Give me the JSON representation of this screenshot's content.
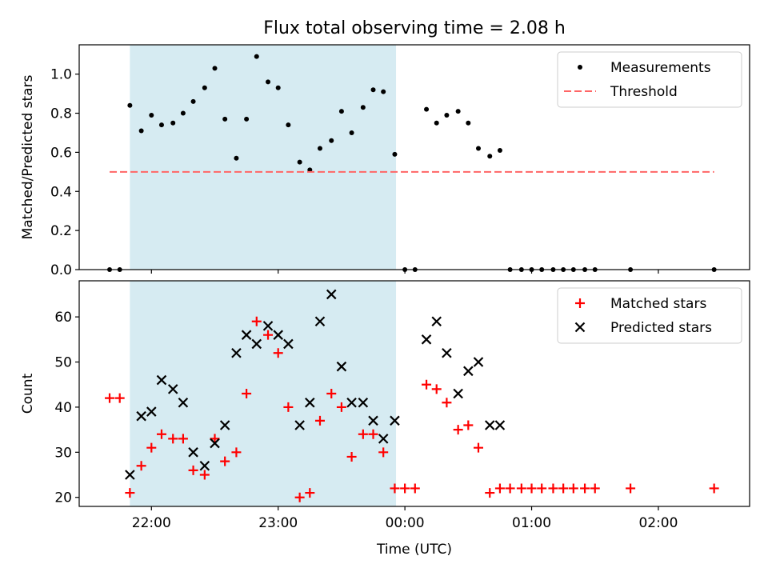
{
  "title": "Flux total observing time = 2.08 h",
  "chart_data": [
    {
      "type": "scatter",
      "ylabel": "Matched/Predicted stars",
      "ylim": [
        0,
        1.15
      ],
      "yticks": [
        "0.0",
        "0.2",
        "0.4",
        "0.6",
        "0.8",
        "1.0"
      ],
      "xlim_hours": [
        21.43,
        26.72
      ],
      "highlight_span_hours": [
        21.83,
        23.93
      ],
      "legend_position": "top-right",
      "series": [
        {
          "name": "Measurements",
          "color": "#000000",
          "marker": "dot",
          "x": [
            21.67,
            21.75,
            21.83,
            21.92,
            22.0,
            22.08,
            22.17,
            22.25,
            22.33,
            22.42,
            22.5,
            22.58,
            22.67,
            22.75,
            22.83,
            22.92,
            23.0,
            23.08,
            23.17,
            23.25,
            23.33,
            23.42,
            23.5,
            23.58,
            23.67,
            23.75,
            23.83,
            23.92,
            24.0,
            24.08,
            24.17,
            24.25,
            24.33,
            24.42,
            24.5,
            24.58,
            24.67,
            24.75,
            24.83,
            24.92,
            25.0,
            25.08,
            25.17,
            25.25,
            25.33,
            25.42,
            25.5,
            25.78,
            26.44
          ],
          "y": [
            0,
            0,
            0.84,
            0.71,
            0.79,
            0.74,
            0.75,
            0.8,
            0.86,
            0.93,
            1.03,
            0.77,
            0.57,
            0.77,
            1.09,
            0.96,
            0.93,
            0.74,
            0.55,
            0.51,
            0.62,
            0.66,
            0.81,
            0.7,
            0.83,
            0.92,
            0.91,
            0.59,
            0,
            0,
            0.82,
            0.75,
            0.79,
            0.81,
            0.75,
            0.62,
            0.58,
            0.61,
            0,
            0,
            0,
            0,
            0,
            0,
            0,
            0,
            0,
            0,
            0
          ]
        },
        {
          "name": "Threshold",
          "color": "#ff6666",
          "style": "dashed",
          "x": [
            21.67,
            26.44
          ],
          "y": [
            0.5,
            0.5
          ]
        }
      ]
    },
    {
      "type": "scatter",
      "ylabel": "Count",
      "xlabel": "Time (UTC)",
      "ylim": [
        18,
        68
      ],
      "yticks": [
        "20",
        "30",
        "40",
        "50",
        "60"
      ],
      "xticks": [
        "22:00",
        "23:00",
        "00:00",
        "01:00",
        "02:00"
      ],
      "xlim_hours": [
        21.43,
        26.72
      ],
      "highlight_span_hours": [
        21.83,
        23.93
      ],
      "legend_position": "top-right",
      "series": [
        {
          "name": "Matched stars",
          "color": "#ff0000",
          "marker": "plus",
          "x": [
            21.67,
            21.75,
            21.83,
            21.92,
            22.0,
            22.08,
            22.17,
            22.25,
            22.33,
            22.42,
            22.5,
            22.58,
            22.67,
            22.75,
            22.83,
            22.92,
            23.0,
            23.08,
            23.17,
            23.25,
            23.33,
            23.42,
            23.5,
            23.58,
            23.67,
            23.75,
            23.83,
            23.92,
            24.0,
            24.08,
            24.17,
            24.25,
            24.33,
            24.42,
            24.5,
            24.58,
            24.67,
            24.75,
            24.83,
            24.92,
            25.0,
            25.08,
            25.17,
            25.25,
            25.33,
            25.42,
            25.5,
            25.78,
            26.44
          ],
          "y": [
            42,
            42,
            21,
            27,
            31,
            34,
            33,
            33,
            26,
            25,
            33,
            28,
            30,
            43,
            59,
            56,
            52,
            40,
            20,
            21,
            37,
            43,
            40,
            29,
            34,
            34,
            30,
            22,
            22,
            22,
            45,
            44,
            41,
            35,
            36,
            31,
            21,
            22,
            22,
            22,
            22,
            22,
            22,
            22,
            22,
            22,
            22,
            22,
            22
          ]
        },
        {
          "name": "Predicted stars",
          "color": "#000000",
          "marker": "cross",
          "x": [
            21.83,
            21.92,
            22.0,
            22.08,
            22.17,
            22.25,
            22.33,
            22.42,
            22.5,
            22.58,
            22.67,
            22.75,
            22.83,
            22.92,
            23.0,
            23.08,
            23.17,
            23.25,
            23.33,
            23.42,
            23.5,
            23.58,
            23.67,
            23.75,
            23.83,
            23.92,
            24.17,
            24.25,
            24.33,
            24.42,
            24.5,
            24.58,
            24.67,
            24.75
          ],
          "y": [
            25,
            38,
            39,
            46,
            44,
            41,
            30,
            27,
            32,
            36,
            52,
            56,
            54,
            58,
            56,
            54,
            36,
            41,
            59,
            65,
            49,
            41,
            41,
            37,
            33,
            37,
            55,
            59,
            52,
            43,
            48,
            50,
            36,
            36
          ]
        }
      ]
    }
  ]
}
